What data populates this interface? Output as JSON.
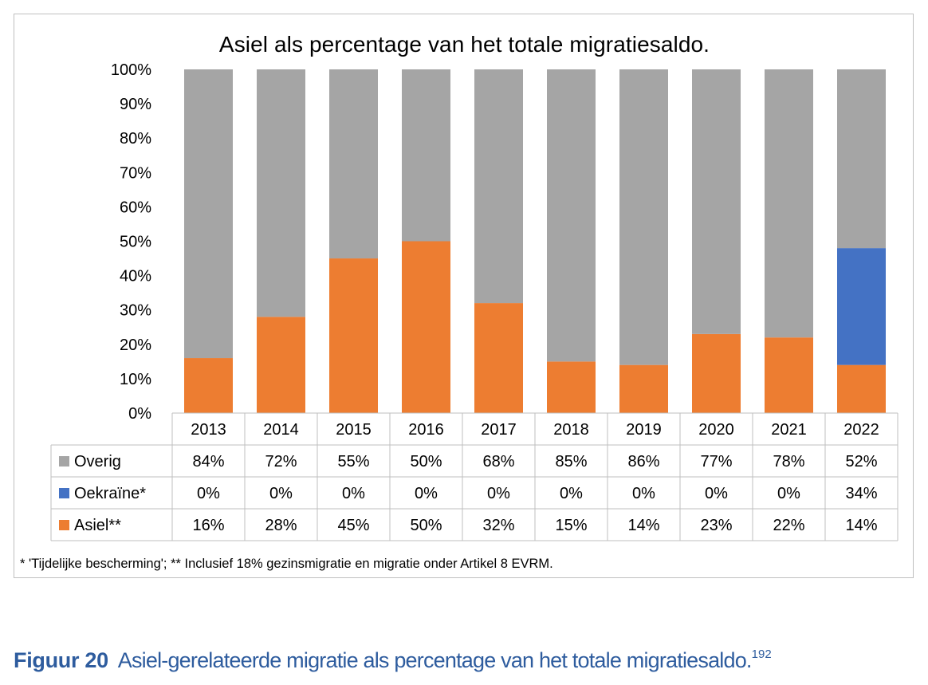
{
  "chart_data": {
    "type": "bar",
    "stacked": true,
    "title": "Asiel als percentage van het totale migratiesaldo.",
    "categories": [
      "2013",
      "2014",
      "2015",
      "2016",
      "2017",
      "2018",
      "2019",
      "2020",
      "2021",
      "2022"
    ],
    "series": [
      {
        "name": "Asiel**",
        "color": "#ed7d31",
        "values": [
          16,
          28,
          45,
          50,
          32,
          15,
          14,
          23,
          22,
          14
        ],
        "labels": [
          "16%",
          "28%",
          "45%",
          "50%",
          "32%",
          "15%",
          "14%",
          "23%",
          "22%",
          "14%"
        ]
      },
      {
        "name": "Oekraïne*",
        "color": "#4472c4",
        "values": [
          0,
          0,
          0,
          0,
          0,
          0,
          0,
          0,
          0,
          34
        ],
        "labels": [
          "0%",
          "0%",
          "0%",
          "0%",
          "0%",
          "0%",
          "0%",
          "0%",
          "0%",
          "34%"
        ]
      },
      {
        "name": "Overig",
        "color": "#a5a5a5",
        "values": [
          84,
          72,
          55,
          50,
          68,
          85,
          86,
          77,
          78,
          52
        ],
        "labels": [
          "84%",
          "72%",
          "55%",
          "50%",
          "68%",
          "85%",
          "86%",
          "77%",
          "78%",
          "52%"
        ]
      }
    ],
    "table_row_order": [
      "Overig",
      "Oekraïne*",
      "Asiel**"
    ],
    "ylim": [
      0,
      100
    ],
    "yticks": [
      "0%",
      "10%",
      "20%",
      "30%",
      "40%",
      "50%",
      "60%",
      "70%",
      "80%",
      "90%",
      "100%"
    ],
    "grid": false,
    "legend": "data table below chart",
    "footnote": "* 'Tijdelijke bescherming'; ** Inclusief 18% gezinsmigratie en migratie onder Artikel 8 EVRM."
  },
  "caption": {
    "label": "Figuur 20",
    "text": "Asiel-gerelateerde migratie als percentage van het totale migratiesaldo.",
    "ref": "192"
  }
}
